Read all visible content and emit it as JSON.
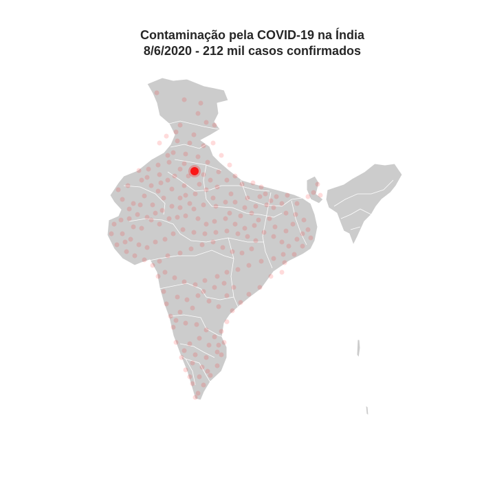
{
  "map": {
    "title": "Contaminação pela COVID-19 na Índia",
    "subtitle": "8/6/2020 - 212 mil casos confirmados",
    "land_color": "#cccccc",
    "border_color": "#ffffff",
    "case_color": "#ff0000",
    "background_color": "#ffffff"
  }
}
